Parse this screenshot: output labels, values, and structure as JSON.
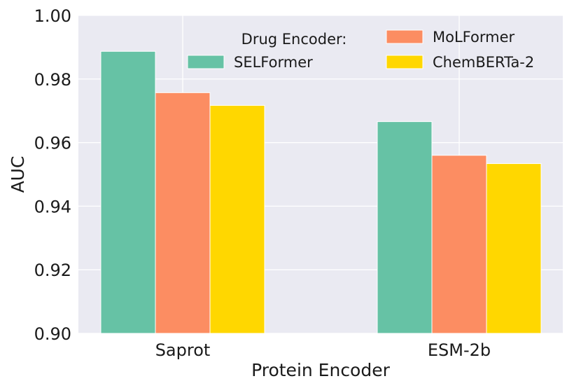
{
  "chart_data": {
    "type": "bar",
    "title": "",
    "xlabel": "Protein Encoder",
    "ylabel": "AUC",
    "categories": [
      "Saprot",
      "ESM-2b"
    ],
    "series": [
      {
        "name": "SELFormer",
        "values": [
          0.9887,
          0.9666
        ],
        "color": "#66c2a5"
      },
      {
        "name": "MoLFormer",
        "values": [
          0.9757,
          0.956
        ],
        "color": "#fc8d62"
      },
      {
        "name": "ChemBERTa-2",
        "values": [
          0.9717,
          0.9534
        ],
        "color": "#ffd700"
      }
    ],
    "ylim": [
      0.9,
      1.0
    ],
    "yticks": [
      "0.90",
      "0.92",
      "0.94",
      "0.96",
      "0.98",
      "1.00"
    ],
    "legend": {
      "title": "Drug Encoder:",
      "placement": "top-right",
      "columns": 2
    },
    "grid": true,
    "background": "#eaeaf2"
  }
}
